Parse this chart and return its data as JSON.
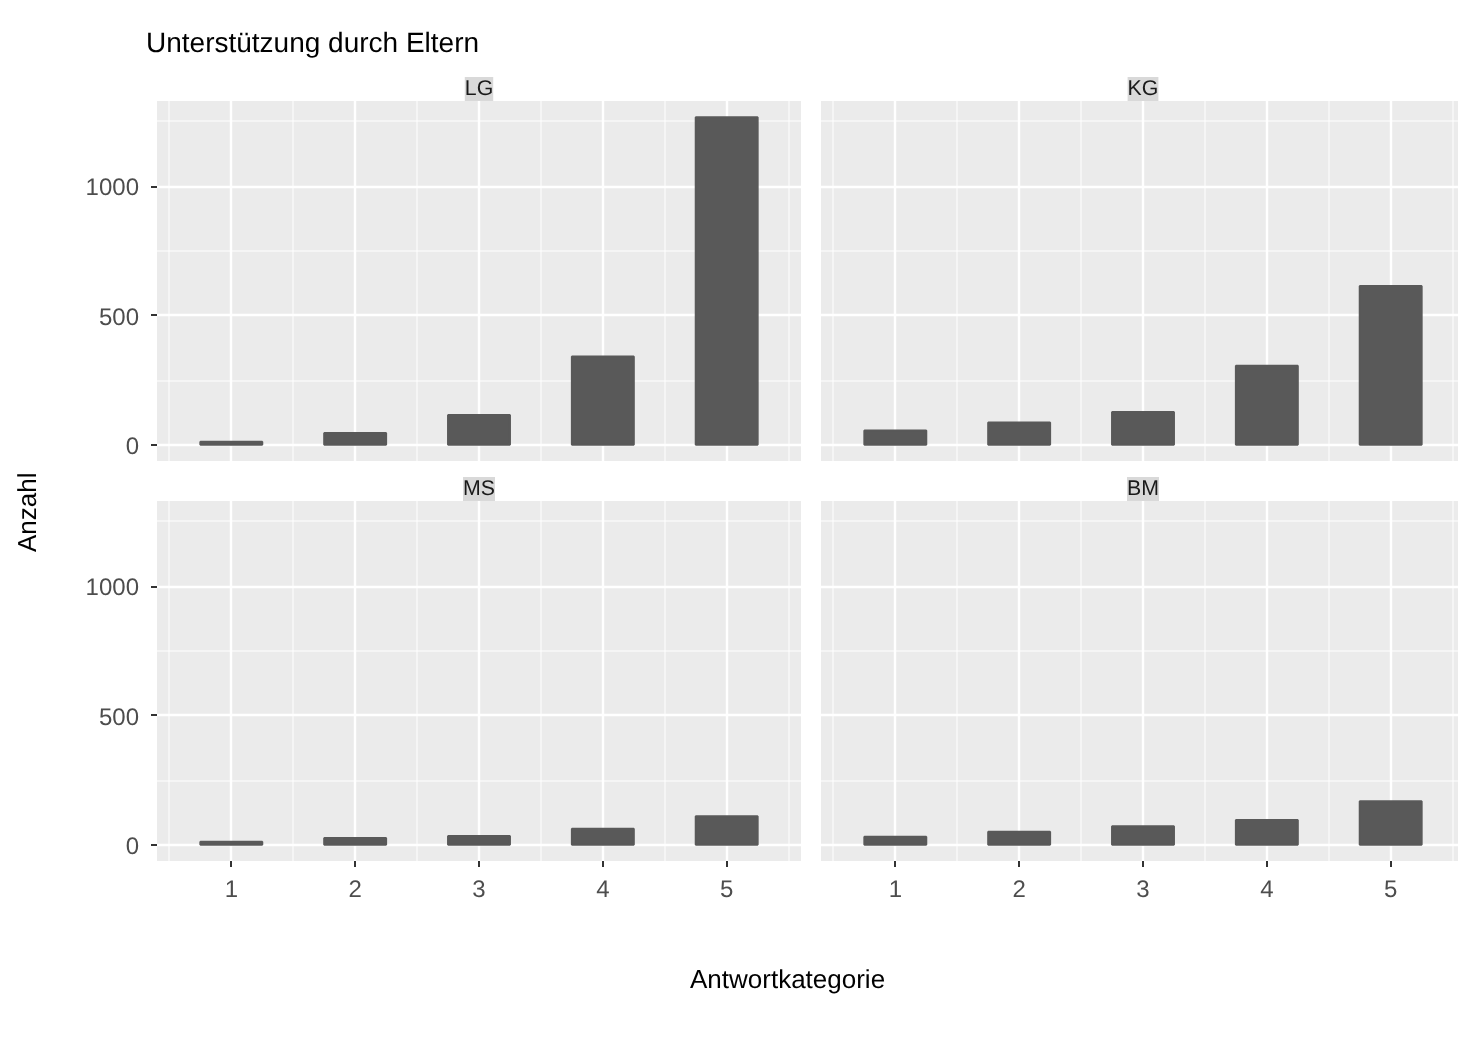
{
  "chart_data": [
    {
      "type": "bar",
      "title": "LG",
      "annotations": [
        "Unterstützung durch Eltern"
      ],
      "ylabel": "Anzahl",
      "categories": [
        "1",
        "2",
        "3",
        "4",
        "5"
      ],
      "values": [
        12,
        45,
        115,
        342,
        1268
      ],
      "color": "#595959",
      "ylim": [
        -63,
        1331
      ],
      "yticks": [
        0,
        500,
        1000
      ],
      "grid": true,
      "tick_labels": "y"
    },
    {
      "type": "bar",
      "title": "KG",
      "categories": [
        "1",
        "2",
        "3",
        "4",
        "5"
      ],
      "values": [
        55,
        86,
        127,
        306,
        615
      ],
      "color": "#595959",
      "ylim": [
        -63,
        1331
      ],
      "yticks": [
        0,
        500,
        1000
      ],
      "grid": true,
      "tick_labels": false
    },
    {
      "type": "bar",
      "title": "MS",
      "xlabel": "Antwortkategorie",
      "categories": [
        "1",
        "2",
        "3",
        "4",
        "5"
      ],
      "values": [
        12,
        26,
        34,
        62,
        110
      ],
      "color": "#595959",
      "ylim": [
        -63,
        1331
      ],
      "yticks": [
        0,
        500,
        1000
      ],
      "grid": true
    },
    {
      "type": "bar",
      "title": "BM",
      "categories": [
        "1",
        "2",
        "3",
        "4",
        "5"
      ],
      "values": [
        31,
        50,
        72,
        96,
        168
      ],
      "color": "#595959",
      "ylim": [
        -63,
        1331
      ],
      "yticks": [
        0,
        500,
        1000
      ],
      "grid": true,
      "tick_labels": "x"
    }
  ]
}
